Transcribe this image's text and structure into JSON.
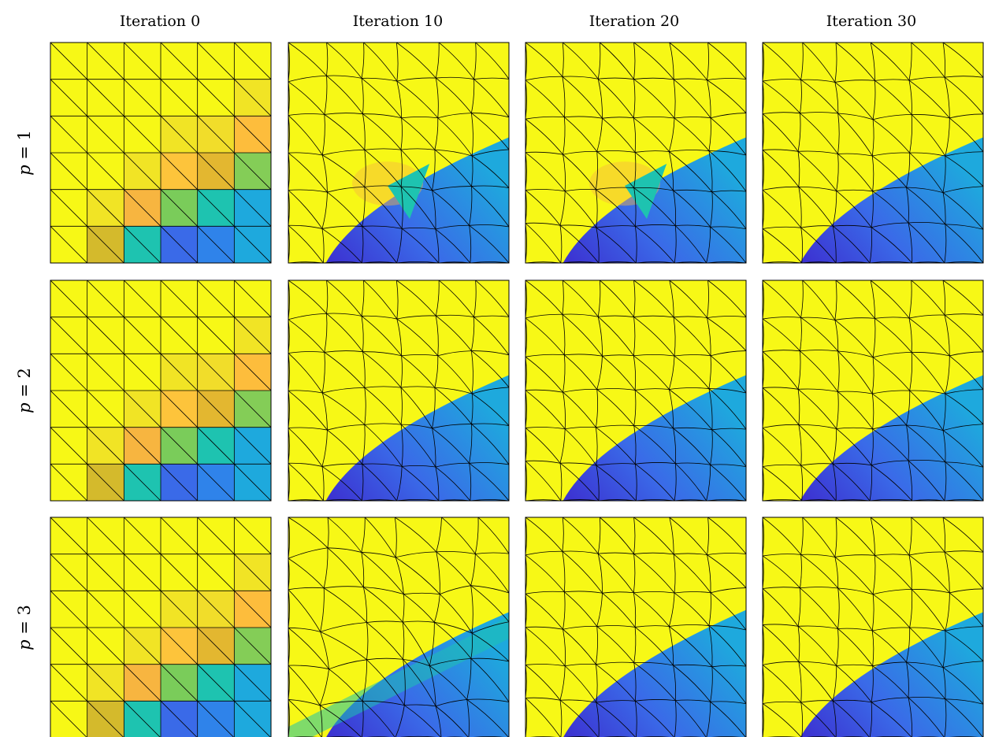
{
  "figure": {
    "columns": [
      {
        "label": "Iteration 0"
      },
      {
        "label": "Iteration 10"
      },
      {
        "label": "Iteration 20"
      },
      {
        "label": "Iteration 30"
      }
    ],
    "rows": [
      {
        "label_italic": "p",
        "label_rest": " = 1"
      },
      {
        "label_italic": "p",
        "label_rest": " = 2"
      },
      {
        "label_italic": "p",
        "label_rest": " = 3"
      }
    ],
    "colors": {
      "yellow": "#f7f816",
      "blue": "#1ea9dd",
      "deep_blue": "#3c2fd0",
      "mid_blue": "#3a6ae8",
      "teal": "#1ec3b0",
      "green": "#84cd57",
      "orange": "#f7b540",
      "gold": "#d4ba2c",
      "mesh": "#000000"
    },
    "initial_cell_colors": [
      [
        "#f7f816",
        "#f7f816",
        "#f7f816",
        "#f7f816",
        "#f7f816",
        "#f7f816"
      ],
      [
        "#f7f816",
        "#f7f816",
        "#f7f816",
        "#f7f816",
        "#f7f816",
        "#f1e425"
      ],
      [
        "#f7f816",
        "#f7f816",
        "#f7f816",
        "#f1e425",
        "#f1dd2a",
        "#fdbd3c"
      ],
      [
        "#f7f816",
        "#f7f816",
        "#f1e425",
        "#fdc43b",
        "#e3b730",
        "#84cd57"
      ],
      [
        "#f7f816",
        "#f1e425",
        "#f7b540",
        "#7acc5a",
        "#1ec3b0",
        "#1ea9dd"
      ],
      [
        "#f7f816",
        "#d4ba2c",
        "#1ec3b0",
        "#3a6ae8",
        "#2f83ea",
        "#1ea9dd"
      ]
    ]
  }
}
